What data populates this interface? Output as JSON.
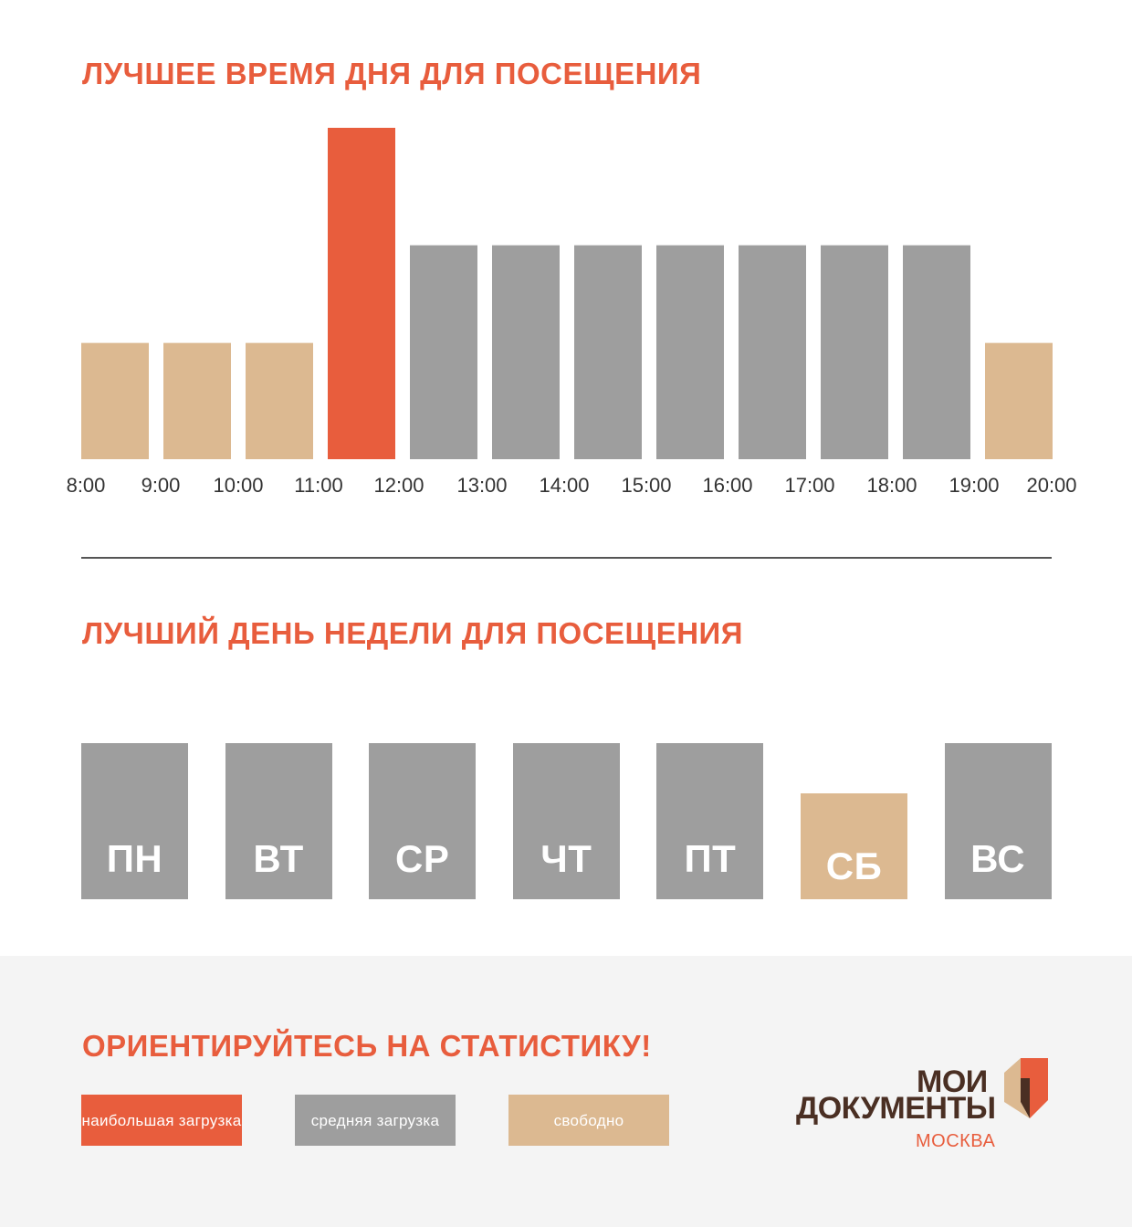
{
  "colors": {
    "accent": "#e85d3d",
    "busy": "#e85d3d",
    "average": "#9e9e9e",
    "free": "#dcb991",
    "divider": "#555555",
    "brand_brown": "#4a2f23",
    "footer_bg": "#f4f4f4"
  },
  "hours_section": {
    "title": "ЛУЧШЕЕ ВРЕМЯ ДНЯ ДЛЯ ПОСЕЩЕНИЯ"
  },
  "chart_data": [
    {
      "type": "bar",
      "title": "ЛУЧШЕЕ ВРЕМЯ ДНЯ ДЛЯ ПОСЕЩЕНИЯ",
      "tick_labels": [
        "8:00",
        "9:00",
        "10:00",
        "11:00",
        "12:00",
        "13:00",
        "14:00",
        "15:00",
        "16:00",
        "17:00",
        "18:00",
        "19:00",
        "20:00"
      ],
      "values": [
        1,
        1,
        1,
        2.85,
        1.84,
        1.84,
        1.84,
        1.84,
        1.84,
        1.84,
        1.84,
        1
      ],
      "levels": [
        "free",
        "free",
        "free",
        "busy",
        "average",
        "average",
        "average",
        "average",
        "average",
        "average",
        "average",
        "free"
      ],
      "ylim": [
        0,
        2.85
      ],
      "grid": false,
      "legend": "bottom"
    },
    {
      "type": "bar",
      "title": "ЛУЧШИЙ ДЕНЬ НЕДЕЛИ ДЛЯ ПОСЕЩЕНИЯ",
      "categories": [
        "ПН",
        "ВТ",
        "СР",
        "ЧТ",
        "ПТ",
        "СБ",
        "ВС"
      ],
      "values": [
        1,
        1,
        1,
        1,
        1,
        0.68,
        1
      ],
      "levels": [
        "average",
        "average",
        "average",
        "average",
        "average",
        "free",
        "average"
      ],
      "ylim": [
        0,
        1
      ],
      "grid": false,
      "legend": "bottom"
    }
  ],
  "days_section": {
    "title": "ЛУЧШИЙ ДЕНЬ НЕДЕЛИ ДЛЯ ПОСЕЩЕНИЯ"
  },
  "footer": {
    "title": "ОРИЕНТИРУЙТЕСЬ НА СТАТИСТИКУ!",
    "legend": [
      {
        "label": "наибольшая загрузка",
        "level": "busy"
      },
      {
        "label": "средняя загрузка",
        "level": "average"
      },
      {
        "label": "свободно",
        "level": "free"
      }
    ]
  },
  "logo": {
    "line1": "МОИ",
    "line2": "ДОКУМЕНТЫ",
    "city": "МОСКВА"
  }
}
